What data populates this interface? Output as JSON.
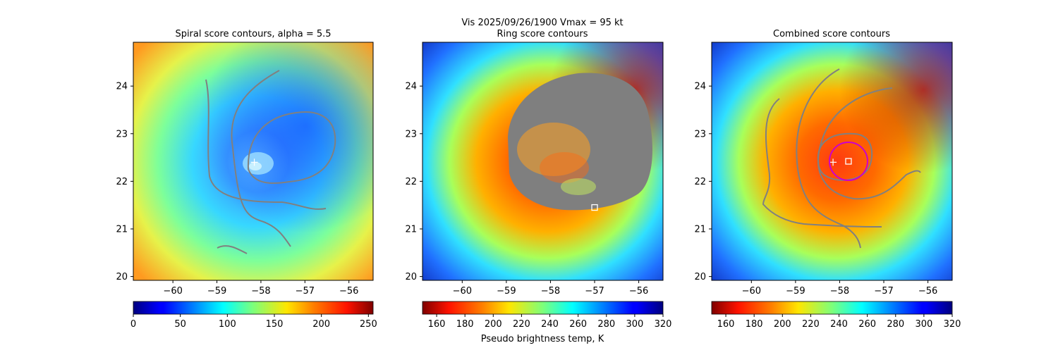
{
  "figure": {
    "suptitle_line1": "Vis  2025/09/26/1900    Vmax = 95 kt",
    "colorbar_label": "Pseudo brightness temp, K"
  },
  "chart_data": [
    {
      "type": "heatmap",
      "title": "Spiral score contours, alpha =  5.5",
      "xlim": [
        -60.9,
        -55.45
      ],
      "ylim": [
        19.92,
        24.92
      ],
      "xticks": [
        -60,
        -59,
        -58,
        -57,
        -56
      ],
      "yticks": [
        20,
        21,
        22,
        23,
        24
      ],
      "colormap": "jet",
      "cbar_range": [
        0,
        255
      ],
      "cbar_ticks": [
        0,
        50,
        100,
        150,
        200,
        250
      ],
      "markers": [
        {
          "kind": "plus",
          "lon": -58.15,
          "lat": 22.4,
          "color": "#ffffff"
        }
      ],
      "contour_color": "#808080"
    },
    {
      "type": "heatmap",
      "title": "Ring score contours",
      "xlim": [
        -60.9,
        -55.45
      ],
      "ylim": [
        19.92,
        24.92
      ],
      "xticks": [
        -60,
        -59,
        -58,
        -57,
        -56
      ],
      "yticks": [
        20,
        21,
        22,
        23,
        24
      ],
      "colormap": "jet_r",
      "cbar_range": [
        150,
        320
      ],
      "cbar_ticks": [
        160,
        180,
        200,
        220,
        240,
        260,
        280,
        300,
        320
      ],
      "markers": [
        {
          "kind": "square",
          "lon": -57.0,
          "lat": 21.45,
          "color": "#ffffff"
        }
      ],
      "contour_color": "#808080"
    },
    {
      "type": "heatmap",
      "title": "Combined score contours",
      "xlim": [
        -60.9,
        -55.45
      ],
      "ylim": [
        19.92,
        24.92
      ],
      "xticks": [
        -60,
        -59,
        -58,
        -57,
        -56
      ],
      "yticks": [
        20,
        21,
        22,
        23,
        24
      ],
      "colormap": "jet_r",
      "cbar_range": [
        150,
        320
      ],
      "cbar_ticks": [
        160,
        180,
        200,
        220,
        240,
        260,
        280,
        300,
        320
      ],
      "markers": [
        {
          "kind": "plus",
          "lon": -58.15,
          "lat": 22.4,
          "color": "#ffffff"
        },
        {
          "kind": "square",
          "lon": -57.8,
          "lat": 22.42,
          "color": "#ffffff"
        },
        {
          "kind": "circle",
          "lon": -57.8,
          "lat": 22.42,
          "color": "#cc00cc"
        }
      ],
      "contour_color": "#808080"
    }
  ]
}
